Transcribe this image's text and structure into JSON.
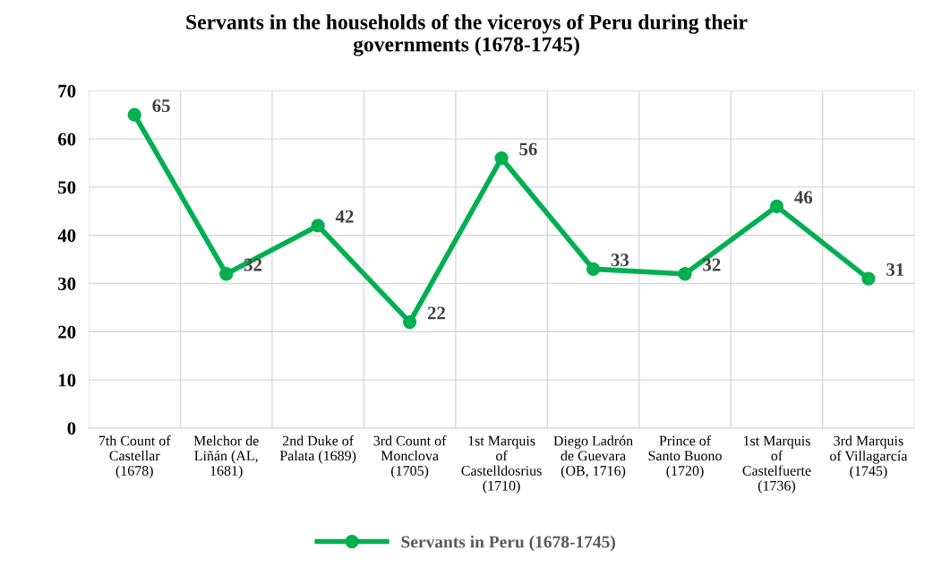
{
  "chart_data": {
    "type": "line",
    "title": "Servants in the households of the viceroys of Peru during their\ngovernments (1678-1745)",
    "categories": [
      "7th Count of\nCastellar\n(1678)",
      "Melchor de\nLiñán (AL,\n1681)",
      "2nd Duke of\nPalata (1689)",
      "3rd Count of\nMonclova\n(1705)",
      "1st Marquis\nof\nCastelldosrius\n(1710)",
      "Diego Ladrón\nde Guevara\n(OB, 1716)",
      "Prince of\nSanto Buono\n(1720)",
      "1st Marquis\nof\nCastelfuerte\n(1736)",
      "3rd Marquis\nof Villagarcía\n(1745)"
    ],
    "series": [
      {
        "name": "Servants in Peru (1678-1745)",
        "color": "#00b050",
        "values": [
          65,
          32,
          42,
          22,
          56,
          33,
          32,
          46,
          31
        ]
      }
    ],
    "ylim": [
      0,
      70
    ],
    "yticks": [
      0,
      10,
      20,
      30,
      40,
      50,
      60,
      70
    ],
    "grid": true,
    "legend": "bottom",
    "marker": "circle",
    "line_style": "solid",
    "data_labels": true
  }
}
